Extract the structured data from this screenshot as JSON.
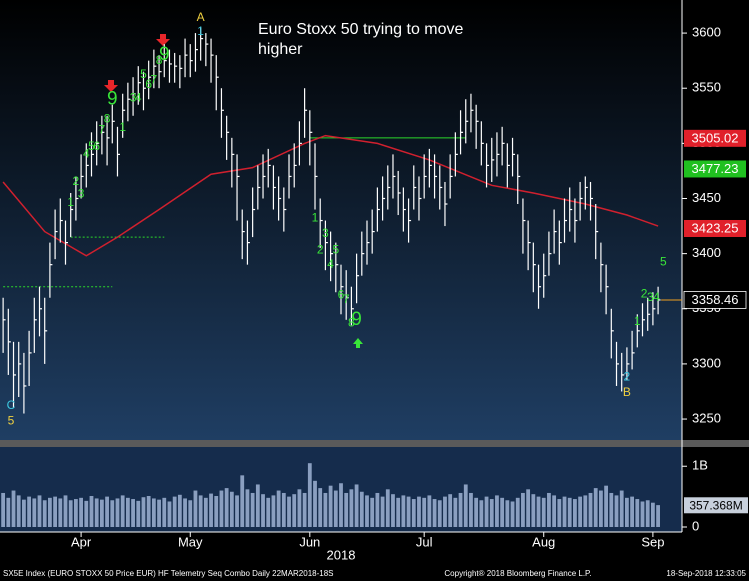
{
  "chart_data": {
    "type": "ohlc",
    "title": [
      "Euro Stoxx 50 trying to move",
      "higher"
    ],
    "xlim": [
      -0.6,
      130.6
    ],
    "xticks": [
      {
        "value": 15,
        "label": "Apr"
      },
      {
        "value": 36,
        "label": "May"
      },
      {
        "value": 59,
        "label": "Jun"
      },
      {
        "value": 81,
        "label": "Jul"
      },
      {
        "value": 104,
        "label": "Aug"
      },
      {
        "value": 125,
        "label": "Sep"
      }
    ],
    "xlabel": "2018",
    "ylim": [
      3231,
      3630
    ],
    "yticks": [
      3250,
      3300,
      3350,
      3400,
      3450,
      3500,
      3550,
      3600
    ],
    "price": {
      "color": "#ffffff",
      "high": [
        3360,
        3350,
        3320,
        3320,
        3310,
        3330,
        3360,
        3370,
        3360,
        3410,
        3440,
        3450,
        3430,
        3455,
        3470,
        3490,
        3500,
        3510,
        3520,
        3525,
        3525,
        3535,
        3515,
        3545,
        3555,
        3560,
        3570,
        3565,
        3575,
        3585,
        3580,
        3590,
        3585,
        3582,
        3580,
        3595,
        3590,
        3600,
        3605,
        3600,
        3595,
        3580,
        3550,
        3525,
        3505,
        3490,
        3440,
        3430,
        3460,
        3480,
        3490,
        3495,
        3480,
        3470,
        3460,
        3490,
        3500,
        3520,
        3550,
        3530,
        3500,
        3450,
        3430,
        3420,
        3410,
        3390,
        3385,
        3370,
        3400,
        3420,
        3430,
        3440,
        3460,
        3470,
        3480,
        3490,
        3475,
        3460,
        3450,
        3480,
        3470,
        3490,
        3495,
        3490,
        3480,
        3465,
        3490,
        3510,
        3530,
        3540,
        3545,
        3535,
        3520,
        3500,
        3505,
        3510,
        3515,
        3500,
        3505,
        3490,
        3450,
        3430,
        3410,
        3390,
        3400,
        3420,
        3440,
        3430,
        3450,
        3460,
        3450,
        3465,
        3470,
        3465,
        3445,
        3410,
        3390,
        3350,
        3320,
        3310,
        3315,
        3330,
        3345,
        3355,
        3360,
        3365,
        3370
      ],
      "low": [
        3310,
        3290,
        3260,
        3270,
        3255,
        3280,
        3310,
        3325,
        3300,
        3360,
        3395,
        3410,
        3390,
        3415,
        3430,
        3450,
        3460,
        3470,
        3480,
        3490,
        3480,
        3500,
        3470,
        3505,
        3520,
        3525,
        3535,
        3530,
        3540,
        3550,
        3550,
        3560,
        3555,
        3555,
        3550,
        3560,
        3560,
        3565,
        3575,
        3570,
        3555,
        3530,
        3505,
        3485,
        3460,
        3430,
        3395,
        3390,
        3415,
        3440,
        3450,
        3460,
        3440,
        3430,
        3420,
        3450,
        3460,
        3480,
        3505,
        3480,
        3440,
        3405,
        3385,
        3375,
        3365,
        3345,
        3340,
        3335,
        3355,
        3380,
        3390,
        3400,
        3420,
        3430,
        3440,
        3450,
        3435,
        3420,
        3410,
        3440,
        3430,
        3450,
        3460,
        3450,
        3440,
        3425,
        3450,
        3470,
        3490,
        3500,
        3510,
        3495,
        3480,
        3460,
        3465,
        3470,
        3480,
        3460,
        3470,
        3445,
        3400,
        3385,
        3365,
        3350,
        3360,
        3380,
        3400,
        3390,
        3410,
        3420,
        3410,
        3430,
        3440,
        3430,
        3395,
        3365,
        3345,
        3305,
        3280,
        3275,
        3285,
        3295,
        3315,
        3325,
        3330,
        3335,
        3345
      ],
      "close": [
        3340,
        3320,
        3290,
        3300,
        3280,
        3310,
        3340,
        3350,
        3330,
        3390,
        3420,
        3430,
        3410,
        3440,
        3450,
        3470,
        3480,
        3490,
        3500,
        3510,
        3505,
        3520,
        3490,
        3530,
        3540,
        3545,
        3555,
        3550,
        3560,
        3570,
        3565,
        3575,
        3572,
        3570,
        3568,
        3580,
        3575,
        3585,
        3595,
        3590,
        3580,
        3560,
        3530,
        3510,
        3490,
        3470,
        3420,
        3410,
        3440,
        3460,
        3470,
        3480,
        3460,
        3450,
        3440,
        3470,
        3480,
        3500,
        3530,
        3510,
        3470,
        3430,
        3410,
        3400,
        3390,
        3370,
        3360,
        3350,
        3380,
        3400,
        3410,
        3420,
        3440,
        3450,
        3460,
        3470,
        3455,
        3440,
        3430,
        3460,
        3450,
        3470,
        3480,
        3470,
        3460,
        3445,
        3470,
        3490,
        3510,
        3520,
        3530,
        3520,
        3500,
        3480,
        3485,
        3490,
        3500,
        3480,
        3490,
        3470,
        3430,
        3410,
        3390,
        3370,
        3380,
        3400,
        3420,
        3410,
        3430,
        3440,
        3430,
        3450,
        3460,
        3450,
        3420,
        3390,
        3370,
        3330,
        3300,
        3290,
        3300,
        3310,
        3330,
        3340,
        3345,
        3350,
        3358
      ]
    },
    "ma": {
      "color": "#d0202e",
      "x": [
        0,
        8,
        16,
        22,
        30,
        40,
        48,
        58,
        62,
        72,
        82,
        94,
        102,
        112,
        120,
        126
      ],
      "values": [
        3465,
        3420,
        3398,
        3415,
        3440,
        3472,
        3478,
        3500,
        3507,
        3500,
        3485,
        3462,
        3455,
        3445,
        3435,
        3425
      ]
    },
    "levels": [
      {
        "value": 3505,
        "from": 59,
        "to": 89,
        "dashed": false,
        "color": "#2bd82b"
      },
      {
        "value": 3415,
        "from": 13,
        "to": 31,
        "dashed": true,
        "color": "#2bd82b"
      },
      {
        "value": 3370,
        "from": 0,
        "to": 21,
        "dashed": true,
        "color": "#2bd82b"
      }
    ],
    "price_tags": [
      {
        "value": 3505.02,
        "color": "#e0202a",
        "text_color": "#ffffff"
      },
      {
        "value": 3477.23,
        "color": "#20c020",
        "text_color": "#ffffff"
      },
      {
        "value": 3423.25,
        "color": "#e0202a",
        "text_color": "#ffffff"
      },
      {
        "value": 3358.46,
        "color": "#000000",
        "text_color": "#ffffff"
      }
    ],
    "annotations": [
      {
        "text": "C",
        "x": 1.5,
        "y": 3262,
        "color": "#3cc8e0"
      },
      {
        "text": "5",
        "x": 1.5,
        "y": 3248,
        "color": "#f0d040"
      },
      {
        "text": "1",
        "x": 13,
        "y": 3446,
        "color": "#39e639"
      },
      {
        "text": "2",
        "x": 14,
        "y": 3465,
        "color": "#39e639"
      },
      {
        "text": "3",
        "x": 15,
        "y": 3454,
        "color": "#39e639"
      },
      {
        "text": "4",
        "x": 16,
        "y": 3490,
        "color": "#39e639"
      },
      {
        "text": "5",
        "x": 17,
        "y": 3497,
        "color": "#39e639"
      },
      {
        "text": "6",
        "x": 18,
        "y": 3497,
        "color": "#39e639"
      },
      {
        "text": "7",
        "x": 19,
        "y": 3512,
        "color": "#39e639"
      },
      {
        "text": "8",
        "x": 20,
        "y": 3522,
        "color": "#39e639"
      },
      {
        "text": "9",
        "x": 21,
        "y": 3540,
        "color": "#39e639",
        "large": true
      },
      {
        "text": "1",
        "x": 23,
        "y": 3514,
        "color": "#39e639"
      },
      {
        "text": "3",
        "x": 25,
        "y": 3541,
        "color": "#39e639"
      },
      {
        "text": "4",
        "x": 26,
        "y": 3541,
        "color": "#39e639"
      },
      {
        "text": "5",
        "x": 27,
        "y": 3562,
        "color": "#39e639"
      },
      {
        "text": "6",
        "x": 28,
        "y": 3553,
        "color": "#39e639"
      },
      {
        "text": "7",
        "x": 29,
        "y": 3557,
        "color": "#39e639"
      },
      {
        "text": "8",
        "x": 30,
        "y": 3575,
        "color": "#39e639"
      },
      {
        "text": "9",
        "x": 31,
        "y": 3580,
        "color": "#39e639",
        "large": true
      },
      {
        "text": "A",
        "x": 38,
        "y": 3614,
        "color": "#f0d040"
      },
      {
        "text": "1",
        "x": 38,
        "y": 3601,
        "color": "#3cc8e0"
      },
      {
        "text": "1",
        "x": 60,
        "y": 3432,
        "color": "#39e639"
      },
      {
        "text": "3",
        "x": 62,
        "y": 3418,
        "color": "#39e639"
      },
      {
        "text": "2",
        "x": 61,
        "y": 3403,
        "color": "#39e639"
      },
      {
        "text": "5",
        "x": 64,
        "y": 3403,
        "color": "#39e639"
      },
      {
        "text": "4",
        "x": 63,
        "y": 3390,
        "color": "#39e639"
      },
      {
        "text": "6",
        "x": 65,
        "y": 3362,
        "color": "#39e639"
      },
      {
        "text": "7",
        "x": 66,
        "y": 3358,
        "color": "#39e639"
      },
      {
        "text": "8",
        "x": 67,
        "y": 3337,
        "color": "#39e639"
      },
      {
        "text": "9",
        "x": 68,
        "y": 3340,
        "color": "#39e639",
        "large": true
      },
      {
        "text": "1",
        "x": 122,
        "y": 3338,
        "color": "#39e639"
      },
      {
        "text": "2",
        "x": 123.3,
        "y": 3363,
        "color": "#39e639"
      },
      {
        "text": "3",
        "x": 124.5,
        "y": 3360,
        "color": "#39e639"
      },
      {
        "text": "4",
        "x": 125.7,
        "y": 3360,
        "color": "#39e639"
      },
      {
        "text": "5",
        "x": 127,
        "y": 3392,
        "color": "#39e639"
      },
      {
        "text": "2",
        "x": 120,
        "y": 3288,
        "color": "#3cc8e0"
      },
      {
        "text": "B",
        "x": 120,
        "y": 3274,
        "color": "#f0d040"
      }
    ],
    "volume": {
      "color": "#8a9fc0",
      "ylim": [
        0,
        1300
      ],
      "yticks": [
        {
          "value": 1000,
          "label": "1B"
        },
        0
      ],
      "values": [
        560,
        480,
        600,
        520,
        450,
        500,
        470,
        520,
        440,
        480,
        500,
        470,
        520,
        440,
        460,
        480,
        430,
        510,
        470,
        450,
        500,
        440,
        470,
        520,
        480,
        460,
        430,
        490,
        510,
        470,
        450,
        480,
        420,
        500,
        530,
        470,
        440,
        600,
        520,
        480,
        550,
        510,
        600,
        640,
        580,
        520,
        850,
        620,
        560,
        700,
        540,
        480,
        520,
        600,
        560,
        500,
        540,
        620,
        560,
        1050,
        760,
        640,
        560,
        680,
        600,
        720,
        560,
        620,
        700,
        580,
        520,
        480,
        560,
        500,
        620,
        540,
        480,
        520,
        500,
        460,
        500,
        480,
        520,
        460,
        440,
        500,
        540,
        480,
        560,
        700,
        560,
        480,
        440,
        500,
        460,
        520,
        480,
        440,
        420,
        480,
        560,
        620,
        540,
        500,
        480,
        560,
        520,
        460,
        500,
        480,
        460,
        500,
        520,
        560,
        640,
        600,
        680,
        560,
        520,
        600,
        480,
        500,
        460,
        420,
        440,
        400,
        360
      ],
      "tag": {
        "value": 357.368,
        "value_label": "357.368M"
      }
    },
    "footer": {
      "left": "SX5E Index (EURO STOXX 50 Price EUR) HF Telemetry Seq Combo  Daily 22MAR2018-18S",
      "center": "Copyright® 2018 Bloomberg Finance L.P.",
      "right": "18-Sep-2018 12:33:05"
    }
  }
}
